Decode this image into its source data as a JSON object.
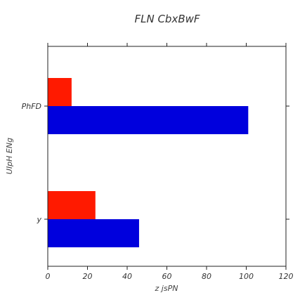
{
  "chart_data": {
    "type": "bar",
    "orientation": "horizontal",
    "title": "FLN CbxBwF",
    "xlabel": "z jsPN",
    "ylabel": "UIpH ENg",
    "categories": [
      "y",
      "PhFD"
    ],
    "xlim": [
      0,
      120
    ],
    "xticks": [
      "0",
      "20",
      "40",
      "60",
      "80",
      "100",
      "120"
    ],
    "grid": false,
    "legend": "none",
    "series": [
      {
        "values": [
          46,
          101
        ],
        "color": "#0000dd"
      },
      {
        "values": [
          24,
          12
        ],
        "color": "#ff1a00"
      }
    ]
  }
}
